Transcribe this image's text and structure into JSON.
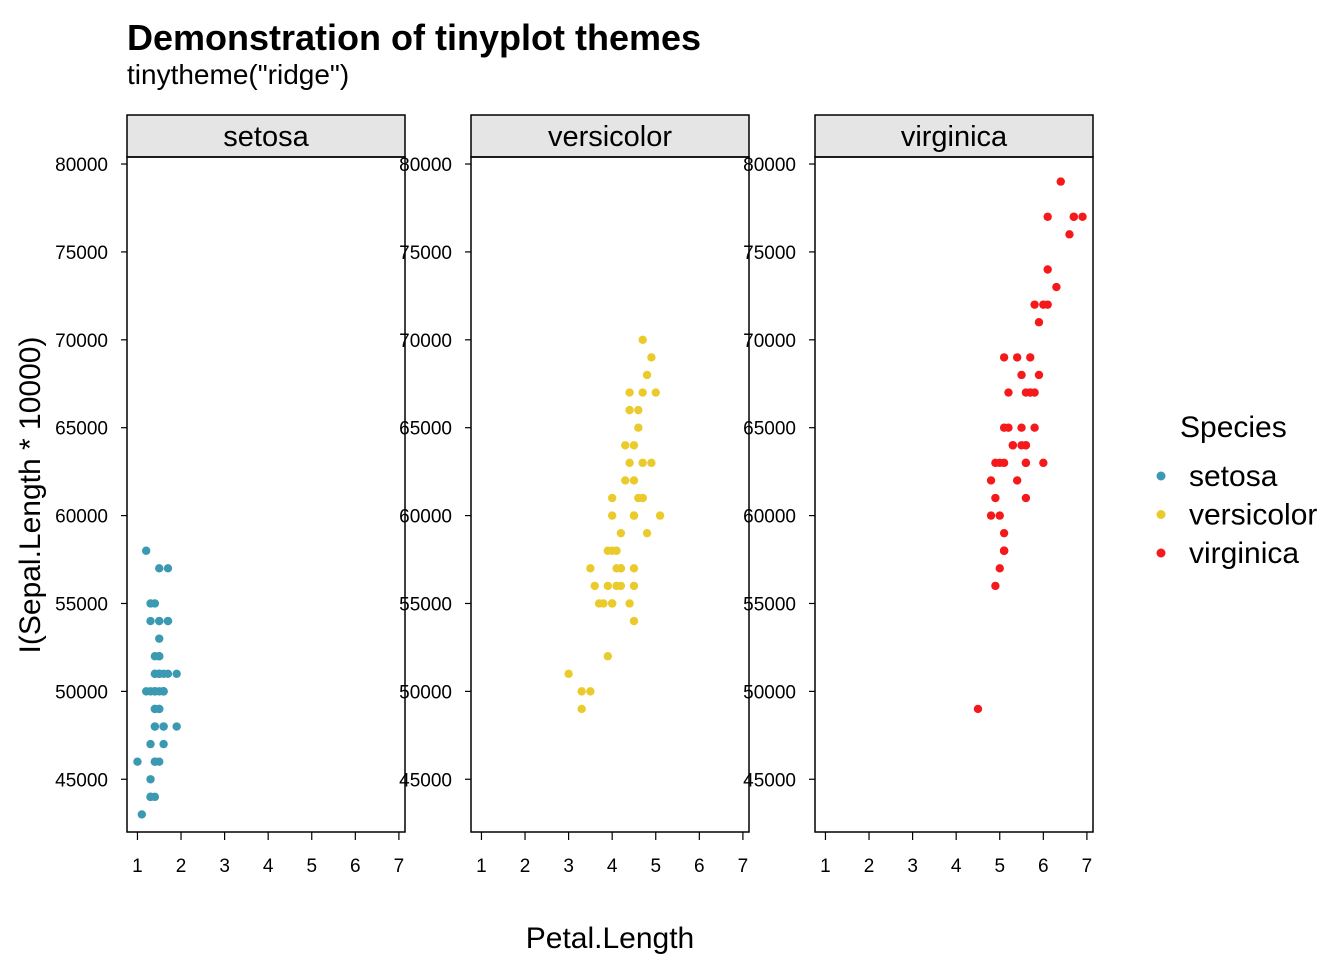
{
  "chart_data": {
    "type": "scatter",
    "title": "Demonstration of tinyplot themes",
    "subtitle": "tinytheme(\"ridge\")",
    "xlabel": "Petal.Length",
    "ylabel": "I(Sepal.Length * 10000)",
    "xlim": [
      0.76,
      7.14
    ],
    "ylim": [
      42000,
      80400
    ],
    "xticks": [
      1,
      2,
      3,
      4,
      5,
      6,
      7
    ],
    "yticks": [
      45000,
      50000,
      55000,
      60000,
      65000,
      70000,
      75000,
      80000
    ],
    "grid": false,
    "facets": [
      "setosa",
      "versicolor",
      "virginica"
    ],
    "legend": {
      "title": "Species",
      "placement": "right",
      "entries": [
        "setosa",
        "versicolor",
        "virginica"
      ]
    },
    "series": [
      {
        "name": "setosa",
        "color": "#3B99B1",
        "points": [
          [
            1.4,
            51000
          ],
          [
            1.4,
            49000
          ],
          [
            1.3,
            47000
          ],
          [
            1.5,
            46000
          ],
          [
            1.4,
            50000
          ],
          [
            1.7,
            54000
          ],
          [
            1.4,
            46000
          ],
          [
            1.5,
            50000
          ],
          [
            1.4,
            44000
          ],
          [
            1.5,
            49000
          ],
          [
            1.5,
            54000
          ],
          [
            1.6,
            48000
          ],
          [
            1.4,
            48000
          ],
          [
            1.1,
            43000
          ],
          [
            1.2,
            58000
          ],
          [
            1.5,
            57000
          ],
          [
            1.3,
            54000
          ],
          [
            1.4,
            51000
          ],
          [
            1.7,
            57000
          ],
          [
            1.5,
            51000
          ],
          [
            1.7,
            54000
          ],
          [
            1.5,
            51000
          ],
          [
            1.0,
            46000
          ],
          [
            1.7,
            51000
          ],
          [
            1.9,
            48000
          ],
          [
            1.6,
            50000
          ],
          [
            1.6,
            50000
          ],
          [
            1.5,
            52000
          ],
          [
            1.4,
            52000
          ],
          [
            1.6,
            47000
          ],
          [
            1.6,
            48000
          ],
          [
            1.5,
            54000
          ],
          [
            1.5,
            52000
          ],
          [
            1.4,
            55000
          ],
          [
            1.5,
            49000
          ],
          [
            1.2,
            50000
          ],
          [
            1.3,
            55000
          ],
          [
            1.4,
            49000
          ],
          [
            1.3,
            44000
          ],
          [
            1.5,
            51000
          ],
          [
            1.3,
            50000
          ],
          [
            1.3,
            45000
          ],
          [
            1.3,
            44000
          ],
          [
            1.6,
            50000
          ],
          [
            1.9,
            51000
          ],
          [
            1.4,
            48000
          ],
          [
            1.6,
            51000
          ],
          [
            1.4,
            46000
          ],
          [
            1.5,
            53000
          ],
          [
            1.4,
            50000
          ]
        ]
      },
      {
        "name": "versicolor",
        "color": "#EACB2B",
        "points": [
          [
            4.7,
            70000
          ],
          [
            4.5,
            64000
          ],
          [
            4.9,
            69000
          ],
          [
            4.0,
            55000
          ],
          [
            4.6,
            65000
          ],
          [
            4.5,
            57000
          ],
          [
            4.7,
            63000
          ],
          [
            3.3,
            49000
          ],
          [
            4.6,
            66000
          ],
          [
            3.9,
            52000
          ],
          [
            3.5,
            50000
          ],
          [
            4.2,
            59000
          ],
          [
            4.0,
            60000
          ],
          [
            4.7,
            61000
          ],
          [
            3.6,
            56000
          ],
          [
            4.4,
            67000
          ],
          [
            4.5,
            56000
          ],
          [
            4.1,
            58000
          ],
          [
            4.5,
            62000
          ],
          [
            3.9,
            56000
          ],
          [
            4.8,
            59000
          ],
          [
            4.0,
            61000
          ],
          [
            4.9,
            63000
          ],
          [
            4.7,
            61000
          ],
          [
            4.3,
            64000
          ],
          [
            4.4,
            66000
          ],
          [
            4.8,
            68000
          ],
          [
            5.0,
            67000
          ],
          [
            4.5,
            60000
          ],
          [
            3.5,
            57000
          ],
          [
            3.8,
            55000
          ],
          [
            3.7,
            55000
          ],
          [
            3.9,
            58000
          ],
          [
            5.1,
            60000
          ],
          [
            4.5,
            54000
          ],
          [
            4.5,
            60000
          ],
          [
            4.7,
            67000
          ],
          [
            4.4,
            63000
          ],
          [
            4.1,
            56000
          ],
          [
            4.0,
            55000
          ],
          [
            4.4,
            55000
          ],
          [
            4.6,
            61000
          ],
          [
            4.0,
            58000
          ],
          [
            3.3,
            50000
          ],
          [
            4.2,
            56000
          ],
          [
            4.2,
            57000
          ],
          [
            4.2,
            57000
          ],
          [
            4.3,
            62000
          ],
          [
            3.0,
            51000
          ],
          [
            4.1,
            57000
          ]
        ]
      },
      {
        "name": "virginica",
        "color": "#F5191C",
        "points": [
          [
            6.0,
            63000
          ],
          [
            5.1,
            58000
          ],
          [
            5.9,
            71000
          ],
          [
            5.6,
            63000
          ],
          [
            5.8,
            65000
          ],
          [
            6.6,
            76000
          ],
          [
            4.5,
            49000
          ],
          [
            6.3,
            73000
          ],
          [
            5.8,
            67000
          ],
          [
            6.1,
            72000
          ],
          [
            5.1,
            65000
          ],
          [
            5.3,
            64000
          ],
          [
            5.5,
            68000
          ],
          [
            5.0,
            57000
          ],
          [
            5.1,
            58000
          ],
          [
            5.3,
            64000
          ],
          [
            5.5,
            65000
          ],
          [
            6.7,
            77000
          ],
          [
            6.9,
            77000
          ],
          [
            5.0,
            60000
          ],
          [
            5.7,
            69000
          ],
          [
            4.9,
            56000
          ],
          [
            6.7,
            77000
          ],
          [
            4.9,
            63000
          ],
          [
            5.7,
            67000
          ],
          [
            6.0,
            72000
          ],
          [
            4.8,
            62000
          ],
          [
            4.9,
            61000
          ],
          [
            5.6,
            64000
          ],
          [
            5.8,
            72000
          ],
          [
            6.1,
            74000
          ],
          [
            6.4,
            79000
          ],
          [
            5.6,
            64000
          ],
          [
            5.1,
            63000
          ],
          [
            5.6,
            61000
          ],
          [
            6.1,
            77000
          ],
          [
            5.6,
            63000
          ],
          [
            5.5,
            64000
          ],
          [
            4.8,
            60000
          ],
          [
            5.4,
            69000
          ],
          [
            5.6,
            67000
          ],
          [
            5.1,
            69000
          ],
          [
            5.1,
            58000
          ],
          [
            5.9,
            68000
          ],
          [
            5.7,
            67000
          ],
          [
            5.2,
            67000
          ],
          [
            5.0,
            63000
          ],
          [
            5.2,
            65000
          ],
          [
            5.4,
            62000
          ],
          [
            5.1,
            59000
          ]
        ]
      }
    ]
  }
}
